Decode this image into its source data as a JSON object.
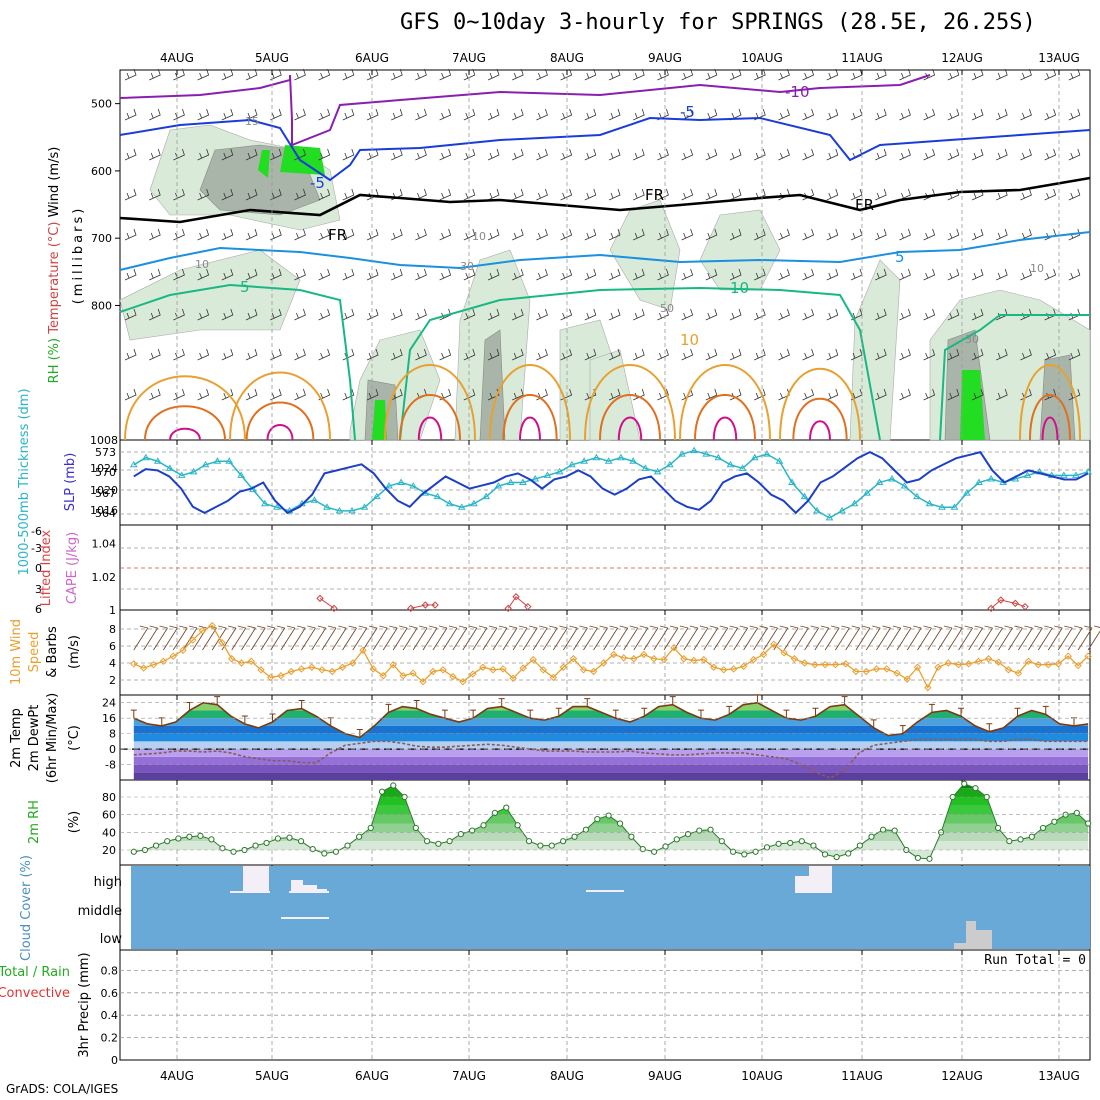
{
  "title": "GFS 0~10day 3-hourly for SPRINGS (28.5E, 26.25S)",
  "credit": "GrADS: COLA/IGES",
  "dates": [
    "4AUG",
    "5AUG",
    "6AUG",
    "7AUG",
    "8AUG",
    "9AUG",
    "10AUG",
    "11AUG",
    "12AUG",
    "13AUG"
  ],
  "chart_data": [
    {
      "type": "contour",
      "ylabel_parts": [
        {
          "text": "RH (%)",
          "color": "#22aa22"
        },
        {
          "text": "Temperature (°C)",
          "color": "#cc4444"
        },
        {
          "text": "Wind (m/s)",
          "color": "#000000"
        }
      ],
      "ylabel2": "(millibars)",
      "y_ticks": [
        500,
        600,
        700,
        800
      ],
      "ylim": [
        1000,
        450
      ],
      "contour_labels": [
        "-10",
        "-5",
        "-5",
        "FR",
        "FR",
        "FR",
        "5",
        "5",
        "10",
        "10",
        "15",
        "10",
        "10",
        "30",
        "30",
        "50",
        "10"
      ]
    },
    {
      "type": "line",
      "ylabel_left": "1000-500mb Thickness (dm)",
      "ylabel_right": "SLP (mb)",
      "left_ticks": [
        "573",
        "570",
        "567",
        "564"
      ],
      "right_ticks": [
        "1024",
        "1020",
        "1016",
        "1008"
      ],
      "thickness_ylim": [
        562,
        574
      ],
      "slp_ylim": [
        1013,
        1027
      ],
      "series": [
        {
          "name": "SLP",
          "color": "#1c3fc8",
          "values": [
            1021,
            1022.2,
            1022,
            1021,
            1019,
            1016,
            1015,
            1016,
            1017,
            1018.5,
            1019,
            1020,
            1017,
            1015,
            1016,
            1018,
            1021.5,
            1022,
            1022.5,
            1023,
            1021.5,
            1019,
            1017,
            1016,
            1018,
            1019.5,
            1021,
            1020,
            1019,
            1019.5,
            1020,
            1021,
            1021.5,
            1020.5,
            1019,
            1020.5,
            1021,
            1022,
            1021,
            1019,
            1018,
            1019,
            1020.5,
            1021,
            1019,
            1017,
            1016,
            1015.5,
            1017,
            1020,
            1021,
            1021.5,
            1020,
            1018,
            1017,
            1015,
            1017,
            1020,
            1021,
            1022.5,
            1024,
            1025,
            1024,
            1022,
            1020,
            1020.5,
            1022,
            1023,
            1024,
            1024.5,
            1025,
            1022,
            1020,
            1021,
            1022,
            1021.5,
            1021,
            1020.5,
            1020.5,
            1021.5
          ]
        },
        {
          "name": "Thickness",
          "color": "#2bb5c8",
          "values": [
            570.5,
            571.5,
            571,
            570,
            569,
            569.5,
            570.5,
            571,
            571,
            569,
            567,
            565,
            564.5,
            564,
            565,
            565.5,
            564.5,
            564,
            564,
            564.5,
            566,
            567.5,
            568,
            567.5,
            566.5,
            566,
            565,
            564.5,
            565,
            566,
            567.5,
            568,
            568,
            568.5,
            569,
            569.5,
            570.5,
            571,
            571.5,
            571,
            571.5,
            571,
            570,
            569.5,
            570.5,
            572,
            572.5,
            572,
            571.5,
            570.5,
            570,
            571.5,
            572,
            571,
            568,
            566,
            564,
            563,
            564,
            565,
            566.5,
            568,
            568.5,
            567.5,
            566,
            565,
            564.5,
            564.5,
            566.5,
            568,
            568.5,
            568,
            568.5,
            569,
            569.5,
            569,
            569,
            569,
            569.5
          ]
        }
      ]
    },
    {
      "type": "line",
      "ylabel_left": "Lifted Index",
      "ylabel_right": "CAPE (J/kg)",
      "li_ticks": [
        "-6",
        "-3",
        "0",
        "3",
        "6"
      ],
      "cape_ticks": [
        "1.04",
        "1.02",
        "1"
      ],
      "series": [
        {
          "name": "CAPE",
          "color": "#cc4444",
          "points": [
            [
              5.48,
              1.007
            ],
            [
              5.62,
              1.001
            ],
            [
              6.4,
              1.001
            ],
            [
              6.55,
              1.003
            ],
            [
              6.65,
              1.003
            ],
            [
              7.4,
              1.001
            ],
            [
              7.48,
              1.008
            ],
            [
              7.6,
              1.002
            ],
            [
              12.3,
              1.001
            ],
            [
              12.4,
              1.006
            ],
            [
              12.55,
              1.004
            ],
            [
              12.65,
              1.002
            ]
          ]
        }
      ]
    },
    {
      "type": "line",
      "ylabel": "10m Wind Speed & Barbs (m/s)",
      "y_ticks": [
        "8",
        "6",
        "4",
        "2"
      ],
      "ylim": [
        0,
        10
      ],
      "series": [
        {
          "name": "Speed",
          "color": "#e8a030",
          "values": [
            3.9,
            3.4,
            3.8,
            4.2,
            4.8,
            5.5,
            6.7,
            7.8,
            8.4,
            6.4,
            4.5,
            4,
            4.2,
            3.2,
            2.3,
            2.5,
            3,
            3.3,
            3.5,
            3.2,
            3,
            3.5,
            4,
            5.5,
            3.3,
            2.5,
            3.8,
            2.5,
            2.8,
            1.8,
            3,
            3.2,
            2.4,
            1.8,
            2.7,
            3.5,
            3.2,
            3.3,
            2.2,
            3.4,
            4.4,
            3.2,
            2.3,
            3.5,
            4.5,
            3.2,
            3,
            4,
            5,
            4.6,
            4.5,
            5,
            4.5,
            4.4,
            5.8,
            4.5,
            4.3,
            4.4,
            3.5,
            3.2,
            3.3,
            3.6,
            4.4,
            5,
            6.2,
            5.2,
            4.5,
            4,
            3.8,
            3.8,
            3.8,
            3.9,
            3,
            3,
            3.3,
            3.3,
            2.8,
            2.1,
            3.5,
            1.1,
            3.5,
            4,
            3.8,
            3.9,
            4.2,
            4.5,
            4.1,
            3.2,
            2.8,
            4.2,
            3.8,
            3.8,
            3.9,
            4.8,
            3.7,
            4.8
          ]
        }
      ]
    },
    {
      "type": "area",
      "ylabel": "2m Temp 2m DewPt (6hr Min/Max) (°C)",
      "y_ticks": [
        "24",
        "16",
        "8",
        "0",
        "-8"
      ],
      "ylim": [
        -16,
        28
      ],
      "series": [
        {
          "name": "Temp",
          "color": "#7a3b10",
          "values": [
            16,
            13,
            12,
            14,
            20,
            24,
            23,
            17,
            13,
            11,
            14,
            20,
            21,
            17,
            12,
            8,
            6,
            12,
            19,
            22,
            21,
            18,
            16,
            14,
            16,
            21,
            22,
            19,
            16,
            15,
            17,
            22,
            22,
            19,
            16,
            14,
            17,
            22,
            23,
            19,
            16,
            15,
            18,
            23,
            24,
            20,
            16,
            15,
            17,
            22,
            23,
            17,
            11,
            7,
            8,
            14,
            19,
            20,
            17,
            12,
            9,
            11,
            17,
            20,
            18,
            13,
            12,
            13
          ]
        },
        {
          "name": "DewPt",
          "color": "#8a5a5a",
          "values": [
            -3,
            -2.5,
            -2,
            -1,
            -1,
            -1.5,
            -1,
            -2,
            -4,
            -5,
            -6,
            -6,
            -7,
            -7,
            -2,
            2,
            3,
            4,
            4,
            3,
            1.5,
            1,
            1,
            1.5,
            2,
            2.5,
            2,
            1,
            0,
            -1,
            -1,
            -1,
            -1.5,
            -1.5,
            -1.5,
            -1,
            -2,
            -2.5,
            -3,
            -3,
            -2.5,
            -2,
            -2,
            -2,
            -3,
            -4,
            -5,
            -8,
            -12,
            -15,
            -11,
            -2,
            2,
            3,
            4,
            5,
            5,
            5,
            5,
            5,
            4,
            4,
            5,
            5,
            4,
            4,
            4,
            4
          ]
        }
      ]
    },
    {
      "type": "area",
      "ylabel": "2m RH (%)",
      "y_ticks": [
        "80",
        "60",
        "40",
        "20"
      ],
      "ylim": [
        0,
        100
      ],
      "series": [
        {
          "name": "RH",
          "color": "#2a7a2a",
          "values": [
            18,
            20,
            25,
            30,
            33,
            35,
            36,
            32,
            22,
            18,
            20,
            25,
            28,
            33,
            34,
            30,
            21,
            16,
            18,
            25,
            35,
            45,
            86,
            93,
            80,
            45,
            30,
            27,
            30,
            38,
            42,
            48,
            62,
            68,
            48,
            30,
            25,
            25,
            30,
            35,
            43,
            55,
            59,
            50,
            35,
            21,
            18,
            24,
            32,
            38,
            42,
            43,
            30,
            18,
            15,
            18,
            23,
            27,
            28,
            30,
            25,
            15,
            12,
            16,
            25,
            35,
            43,
            42,
            20,
            11,
            10,
            40,
            80,
            95,
            90,
            80,
            45,
            30,
            32,
            35,
            45,
            52,
            60,
            62,
            50
          ]
        }
      ]
    },
    {
      "type": "bar",
      "ylabel": "Cloud Cover (%)",
      "levels": [
        "high",
        "middle",
        "low"
      ]
    },
    {
      "type": "bar",
      "ylabel_left": "Total / Rain",
      "ylabel_left2": "Convective",
      "ylabel": "3hr Precip (mm)",
      "y_ticks": [
        "0.8",
        "0.6",
        "0.4",
        "0.2",
        "0"
      ],
      "ylim": [
        0,
        1
      ],
      "run_total": "Run Total = 0"
    }
  ]
}
